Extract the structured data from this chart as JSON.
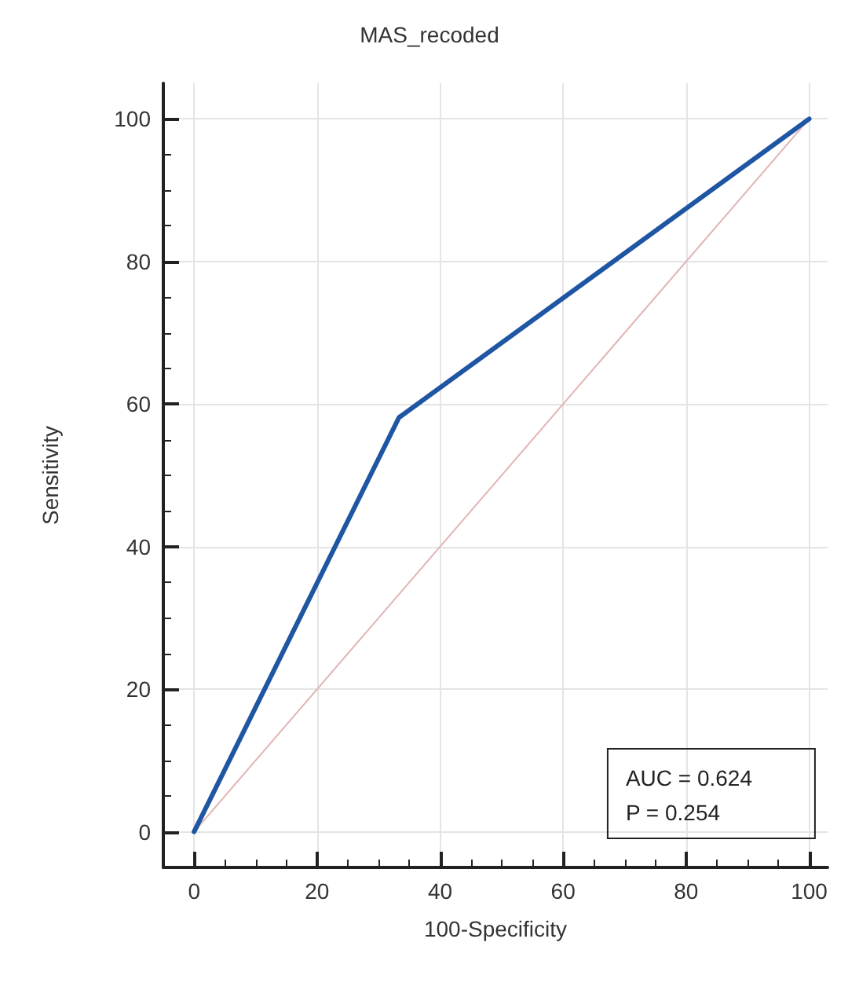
{
  "chart_data": {
    "type": "line",
    "title": "MAS_recoded",
    "xlabel": "100-Specificity",
    "ylabel": "Sensitivity",
    "x": [
      0,
      33.3,
      100
    ],
    "series": [
      {
        "color": "#1f56a3",
        "values": [
          0,
          58.1,
          100
        ]
      },
      {
        "color": "#e2b4b4",
        "x": [
          0,
          100
        ],
        "values": [
          0,
          100
        ]
      }
    ],
    "xlim": [
      -5,
      103
    ],
    "ylim": [
      -5,
      105
    ],
    "xticks": [
      0,
      20,
      40,
      60,
      80,
      100
    ],
    "yticks": [
      0,
      20,
      40,
      60,
      80,
      100
    ],
    "grid": true,
    "marker": "none",
    "line_style": "solid",
    "annotations": [
      "AUC = 0.624",
      "P = 0.254"
    ]
  }
}
